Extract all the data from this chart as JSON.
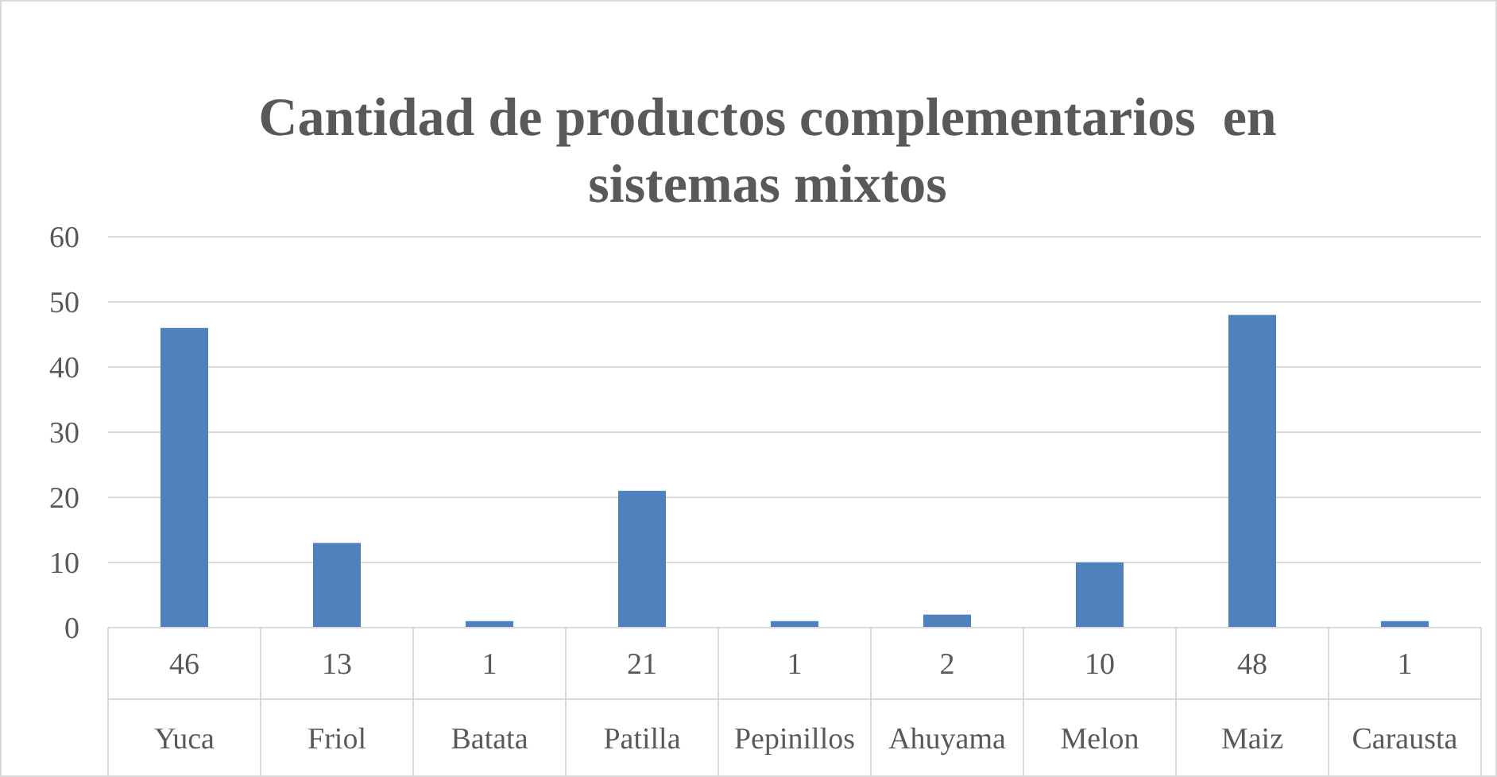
{
  "chart_data": {
    "type": "bar",
    "title": "Cantidad de productos complementarios  en sistemas mixtos",
    "categories": [
      "Yuca",
      "Friol",
      "Batata",
      "Patilla",
      "Pepinillos",
      "Ahuyama",
      "Melon",
      "Maiz",
      "Carausta"
    ],
    "values": [
      46,
      13,
      1,
      21,
      1,
      2,
      10,
      48,
      1
    ],
    "color": "#4f81bd",
    "ylim": [
      0,
      60
    ],
    "yticks": [
      0,
      10,
      20,
      30,
      40,
      50,
      60
    ],
    "grid": "y",
    "data_labels": true
  }
}
